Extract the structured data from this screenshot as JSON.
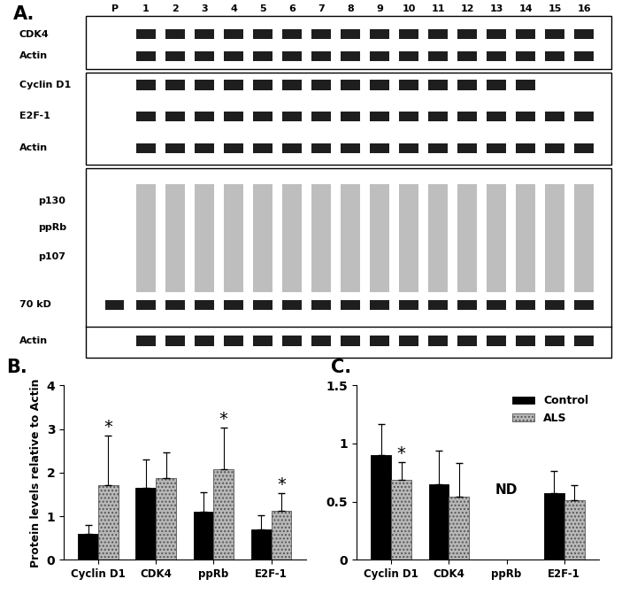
{
  "blot_panel": {
    "label": "A.",
    "lanes": [
      "P",
      "1",
      "2",
      "3",
      "4",
      "5",
      "6",
      "7",
      "8",
      "9",
      "10",
      "11",
      "12",
      "13",
      "14",
      "15",
      "16"
    ],
    "blots": [
      {
        "rows": [
          {
            "label": "CDK4",
            "bands": [
              "1",
              "2",
              "3",
              "4",
              "5",
              "6",
              "7",
              "8",
              "9",
              "10",
              "11",
              "12",
              "13",
              "14",
              "15",
              "16"
            ]
          },
          {
            "label": "Actin",
            "bands": [
              "1",
              "2",
              "3",
              "4",
              "5",
              "6",
              "7",
              "8",
              "9",
              "10",
              "11",
              "12",
              "13",
              "14",
              "15",
              "16"
            ]
          }
        ]
      },
      {
        "rows": [
          {
            "label": "Cyclin D1",
            "bands": [
              "1",
              "2",
              "3",
              "4",
              "5",
              "6",
              "7",
              "8",
              "9",
              "10",
              "11",
              "12",
              "13",
              "14"
            ]
          },
          {
            "label": "E2F-1",
            "bands": [
              "1",
              "2",
              "3",
              "4",
              "5",
              "6",
              "7",
              "8",
              "9",
              "10",
              "11",
              "12",
              "13",
              "14",
              "15",
              "16"
            ]
          },
          {
            "label": "Actin",
            "bands": [
              "1",
              "2",
              "3",
              "4",
              "5",
              "6",
              "7",
              "8",
              "9",
              "10",
              "11",
              "12",
              "13",
              "14",
              "15",
              "16"
            ]
          }
        ]
      },
      {
        "smear": {
          "labels": [
            "p130",
            "ppRb",
            "p107"
          ],
          "lanes": [
            "1",
            "2",
            "3",
            "4",
            "5",
            "6",
            "7",
            "8",
            "9",
            "10",
            "11",
            "12",
            "13",
            "14",
            "15",
            "16"
          ]
        },
        "rows": [
          {
            "label": "70 kD",
            "bands": [
              "P",
              "1",
              "2",
              "3",
              "4",
              "5",
              "6",
              "7",
              "8",
              "9",
              "10",
              "11",
              "12",
              "13",
              "14",
              "15",
              "16"
            ]
          },
          {
            "label": "Actin",
            "bands": [
              "1",
              "2",
              "3",
              "4",
              "5",
              "6",
              "7",
              "8",
              "9",
              "10",
              "11",
              "12",
              "13",
              "14",
              "15",
              "16"
            ]
          }
        ]
      }
    ]
  },
  "chart_data": [
    {
      "type": "bar",
      "panel_label": "B.",
      "y_label": "Protein levels relative to Actin",
      "categories": [
        "Cyclin D1",
        "CDK4",
        "ppRb",
        "E2F-1"
      ],
      "series": [
        {
          "name": "Control",
          "color": "#000000",
          "values": [
            0.6,
            1.65,
            1.1,
            0.7
          ],
          "errors": [
            0.2,
            0.65,
            0.45,
            0.32
          ]
        },
        {
          "name": "ALS",
          "color": "#b8b8b8",
          "values": [
            1.72,
            1.88,
            2.08,
            1.12
          ],
          "errors": [
            1.12,
            0.58,
            0.95,
            0.4
          ]
        }
      ],
      "annotations": [
        {
          "text": "*",
          "category": "Cyclin D1",
          "series": "ALS"
        },
        {
          "text": "*",
          "category": "ppRb",
          "series": "ALS"
        },
        {
          "text": "*",
          "category": "E2F-1",
          "series": "ALS"
        }
      ],
      "ylim": [
        0,
        4
      ],
      "yticks": [
        0,
        1,
        2,
        3,
        4
      ],
      "grid": false
    },
    {
      "type": "bar",
      "panel_label": "C.",
      "categories": [
        "Cyclin D1",
        "CDK4",
        "ppRb",
        "E2F-1"
      ],
      "series": [
        {
          "name": "Control",
          "color": "#000000",
          "values": [
            0.9,
            0.65,
            null,
            0.57
          ],
          "errors": [
            0.27,
            0.29,
            null,
            0.19
          ]
        },
        {
          "name": "ALS",
          "color": "#b8b8b8",
          "values": [
            0.69,
            0.54,
            null,
            0.51
          ],
          "errors": [
            0.15,
            0.29,
            null,
            0.13
          ]
        }
      ],
      "annotations": [
        {
          "text": "*",
          "category": "Cyclin D1",
          "series": "ALS"
        },
        {
          "text": "ND",
          "category": "ppRb"
        }
      ],
      "ylim": [
        0,
        1.5
      ],
      "yticks": [
        0,
        0.5,
        1,
        1.5
      ],
      "grid": false,
      "legend": "upper right"
    }
  ]
}
